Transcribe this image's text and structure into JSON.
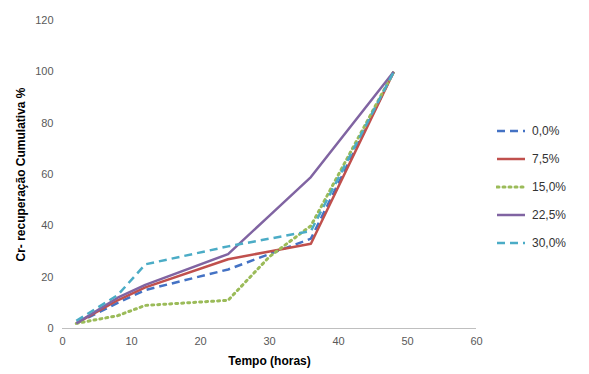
{
  "chart_data": {
    "type": "line",
    "x_label": "Tempo (horas)",
    "y_label": "Cr- recuperação Cumulativa %",
    "x": [
      2,
      8,
      12,
      24,
      30,
      36,
      48
    ],
    "series": [
      {
        "name": "0,0%",
        "color": "#4472c4",
        "line_style": "dashed",
        "values": [
          2,
          10,
          15,
          23,
          29,
          35,
          100
        ]
      },
      {
        "name": "7,5%",
        "color": "#c0504d",
        "line_style": "solid",
        "values": [
          2,
          11,
          16,
          27,
          30,
          33,
          100
        ]
      },
      {
        "name": "15,0%",
        "color": "#9bbb59",
        "line_style": "dotted",
        "values": [
          2,
          5,
          9,
          11,
          28,
          40,
          100
        ]
      },
      {
        "name": "22,5%",
        "color": "#8064a2",
        "line_style": "solid",
        "values": [
          2,
          12,
          17,
          29,
          44,
          59,
          100
        ]
      },
      {
        "name": "30,0%",
        "color": "#4bacc6",
        "line_style": "dashed",
        "values": [
          3,
          13,
          25,
          32,
          35,
          38,
          100
        ]
      }
    ],
    "xlim": [
      0,
      60
    ],
    "xticks": [
      0,
      10,
      20,
      30,
      40,
      50,
      60
    ],
    "ylim": [
      0,
      120
    ],
    "yticks": [
      0,
      20,
      40,
      60,
      80,
      100,
      120
    ],
    "grid": false,
    "legend": "right"
  }
}
